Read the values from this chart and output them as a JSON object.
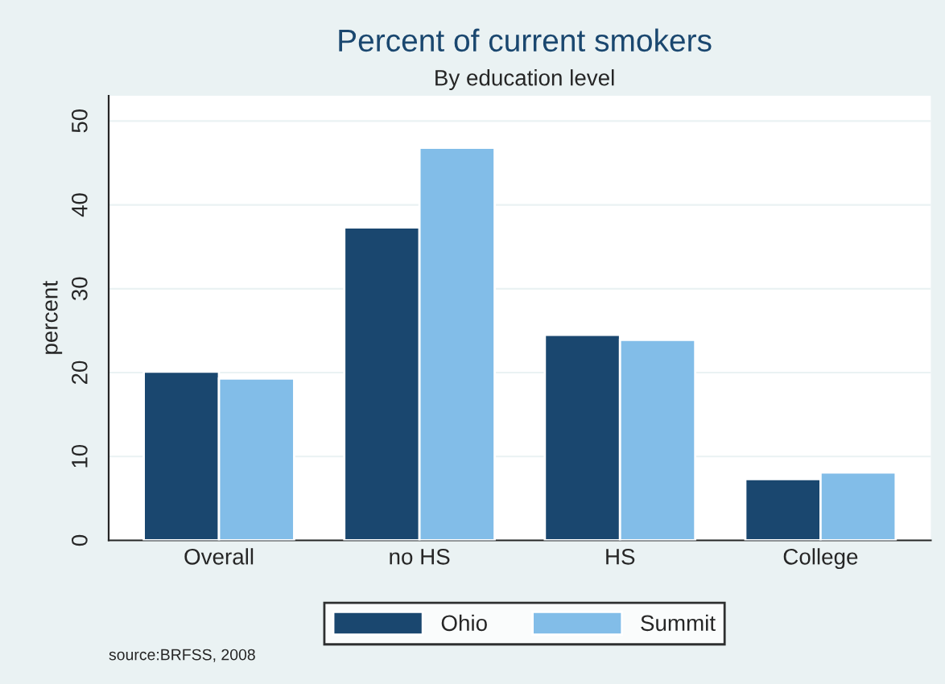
{
  "chart_data": {
    "type": "bar",
    "title": "Percent of current smokers",
    "subtitle": "By education level",
    "ylabel": "percent",
    "categories": [
      "Overall",
      "no HS",
      "HS",
      "College"
    ],
    "series": [
      {
        "name": "Ohio",
        "color": "#1a476f",
        "values": [
          20.1,
          37.3,
          24.5,
          7.3
        ]
      },
      {
        "name": "Summit",
        "color": "#82bde8",
        "values": [
          19.3,
          46.8,
          23.9,
          8.1
        ]
      }
    ],
    "ylim": [
      0,
      53
    ],
    "yticks": [
      0,
      10,
      20,
      30,
      40,
      50
    ],
    "grid": "y",
    "legend": "bottom",
    "annotations": [
      "source:BRFSS, 2008"
    ]
  }
}
